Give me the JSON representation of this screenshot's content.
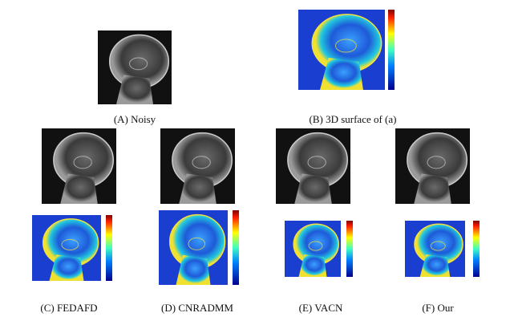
{
  "panels": [
    {
      "caption": "(A) Noisy"
    },
    {
      "caption": "(B) 3D surface of (a)"
    },
    {
      "caption": "(C) FEDAFD"
    },
    {
      "caption": "(D) CNRADMM"
    },
    {
      "caption": "(E) VACN"
    },
    {
      "caption": "(F) Our"
    }
  ]
}
